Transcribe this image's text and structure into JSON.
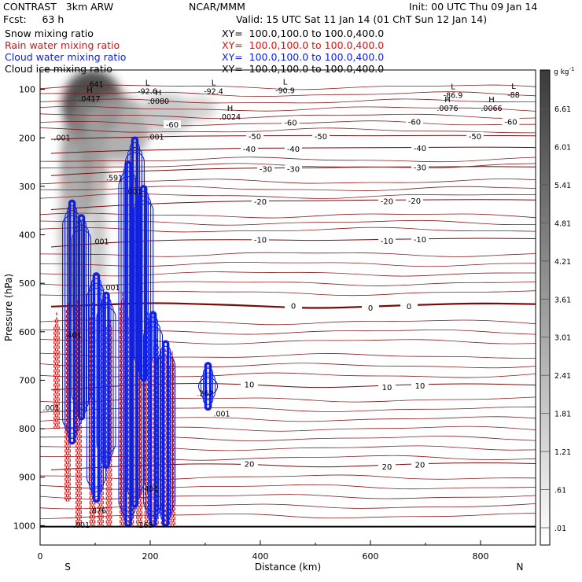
{
  "header": {
    "model": "CONTRAST   3km ARW",
    "center": "NCAR/MMM",
    "init": "Init: 00 UTC Thu 09 Jan 14",
    "fcst": "Fcst:     63 h",
    "valid": "Valid: 15 UTC Sat 11 Jan 14 (01 ChT Sun 12 Jan 14)",
    "fields": [
      {
        "label": "Snow mixing ratio",
        "xy": "XY=  100.0,100.0 to 100.0,400.0",
        "color": "#000000"
      },
      {
        "label": "Rain water mixing ratio",
        "xy": "XY=  100.0,100.0 to 100.0,400.0",
        "color": "#e01010"
      },
      {
        "label": "Cloud water mixing ratio",
        "xy": "XY=  100.0,100.0 to 100.0,400.0",
        "color": "#1020e0"
      },
      {
        "label": "Cloud ice mixing ratio",
        "xy": "XY=  100.0,100.0 to 100.0,400.0",
        "color": "#000000"
      }
    ]
  },
  "chart_data": {
    "type": "heatmap",
    "xlabel": "Distance (km)",
    "ylabel": "Pressure (hPa)",
    "xlim": [
      0,
      900
    ],
    "ylim": [
      1040,
      60
    ],
    "x_ticks": [
      0,
      200,
      400,
      600,
      800
    ],
    "y_ticks": [
      100,
      200,
      300,
      400,
      500,
      600,
      700,
      800,
      900,
      1000
    ],
    "x_end_labels": {
      "left": "S",
      "right": "N"
    },
    "colorbar": {
      "unit": "g kg",
      "unit_exp": "-1",
      "labels": [
        "6.61",
        "6.01",
        "5.41",
        "4.81",
        "4.21",
        "3.61",
        "3.01",
        "2.41",
        "1.81",
        "1.21",
        ".61",
        ".01"
      ]
    },
    "temperature_contours": [
      {
        "label": "-50",
        "points": [
          [
            20,
            203
          ],
          [
            100,
            200
          ],
          [
            200,
            198
          ],
          [
            300,
            196
          ],
          [
            400,
            196
          ],
          [
            500,
            195
          ],
          [
            600,
            196
          ],
          [
            700,
            195
          ],
          [
            800,
            195
          ],
          [
            900,
            196
          ]
        ]
      },
      {
        "label": "-40",
        "points": [
          [
            20,
            232
          ],
          [
            100,
            228
          ],
          [
            200,
            225
          ],
          [
            300,
            223
          ],
          [
            400,
            221
          ],
          [
            500,
            221
          ],
          [
            600,
            220
          ],
          [
            700,
            220
          ],
          [
            800,
            219
          ],
          [
            900,
            220
          ]
        ]
      },
      {
        "label": "-30",
        "points": [
          [
            20,
            278
          ],
          [
            100,
            272
          ],
          [
            200,
            268
          ],
          [
            300,
            264
          ],
          [
            400,
            262
          ],
          [
            500,
            262
          ],
          [
            600,
            260
          ],
          [
            700,
            260
          ],
          [
            800,
            259
          ],
          [
            900,
            260
          ]
        ]
      },
      {
        "label": "-20",
        "points": [
          [
            20,
            348
          ],
          [
            100,
            342
          ],
          [
            200,
            336
          ],
          [
            300,
            332
          ],
          [
            400,
            330
          ],
          [
            500,
            330
          ],
          [
            600,
            328
          ],
          [
            700,
            328
          ],
          [
            800,
            327
          ],
          [
            900,
            328
          ]
        ]
      },
      {
        "label": "-10",
        "points": [
          [
            20,
            425
          ],
          [
            100,
            418
          ],
          [
            200,
            412
          ],
          [
            300,
            410
          ],
          [
            400,
            410
          ],
          [
            500,
            412
          ],
          [
            600,
            410
          ],
          [
            700,
            408
          ],
          [
            800,
            407
          ],
          [
            900,
            408
          ]
        ]
      },
      {
        "label": "0",
        "points": [
          [
            20,
            548
          ],
          [
            100,
            545
          ],
          [
            200,
            540
          ],
          [
            300,
            543
          ],
          [
            400,
            547
          ],
          [
            500,
            552
          ],
          [
            600,
            548
          ],
          [
            700,
            544
          ],
          [
            800,
            541
          ],
          [
            900,
            543
          ]
        ]
      },
      {
        "label": "10",
        "points": [
          [
            20,
            720
          ],
          [
            100,
            715
          ],
          [
            200,
            708
          ],
          [
            300,
            706
          ],
          [
            400,
            710
          ],
          [
            500,
            716
          ],
          [
            600,
            712
          ],
          [
            700,
            708
          ],
          [
            800,
            707
          ],
          [
            900,
            710
          ]
        ]
      },
      {
        "label": "20",
        "points": [
          [
            20,
            885
          ],
          [
            100,
            880
          ],
          [
            200,
            875
          ],
          [
            300,
            872
          ],
          [
            400,
            874
          ],
          [
            500,
            880
          ],
          [
            600,
            876
          ],
          [
            700,
            872
          ],
          [
            800,
            870
          ],
          [
            900,
            872
          ]
        ]
      }
    ],
    "temperature_labels": [
      {
        "text": "-60",
        "x": 240,
        "p": 172
      },
      {
        "text": "-60",
        "x": 455,
        "p": 168
      },
      {
        "text": "-60",
        "x": 680,
        "p": 166
      },
      {
        "text": "-60",
        "x": 855,
        "p": 166
      },
      {
        "text": "-50",
        "x": 390,
        "p": 196
      },
      {
        "text": "-50",
        "x": 510,
        "p": 196
      },
      {
        "text": "-50",
        "x": 790,
        "p": 196
      },
      {
        "text": "-40",
        "x": 380,
        "p": 222
      },
      {
        "text": "-40",
        "x": 460,
        "p": 222
      },
      {
        "text": "-40",
        "x": 690,
        "p": 221
      },
      {
        "text": "-30",
        "x": 410,
        "p": 264
      },
      {
        "text": "-30",
        "x": 460,
        "p": 264
      },
      {
        "text": "-30",
        "x": 690,
        "p": 260
      },
      {
        "text": "-20",
        "x": 400,
        "p": 331
      },
      {
        "text": "-20",
        "x": 630,
        "p": 330
      },
      {
        "text": "-20",
        "x": 680,
        "p": 329
      },
      {
        "text": "-10",
        "x": 400,
        "p": 410
      },
      {
        "text": "-10",
        "x": 630,
        "p": 412
      },
      {
        "text": "-10",
        "x": 690,
        "p": 409
      },
      {
        "text": "0",
        "x": 460,
        "p": 546
      },
      {
        "text": "0",
        "x": 600,
        "p": 550
      },
      {
        "text": "0",
        "x": 670,
        "p": 547
      },
      {
        "text": "10",
        "x": 380,
        "p": 708
      },
      {
        "text": "10",
        "x": 630,
        "p": 714
      },
      {
        "text": "10",
        "x": 690,
        "p": 711
      },
      {
        "text": "20",
        "x": 380,
        "p": 872
      },
      {
        "text": "20",
        "x": 630,
        "p": 878
      },
      {
        "text": "20",
        "x": 690,
        "p": 874
      }
    ],
    "extrema_labels": [
      {
        "mark": "L",
        "value": "-92.6",
        "x": 195,
        "p": 95
      },
      {
        "mark": "L",
        "value": "-92.4",
        "x": 315,
        "p": 95
      },
      {
        "mark": "L",
        "value": "-90.9",
        "x": 445,
        "p": 93
      },
      {
        "mark": "L",
        "value": "-86.9",
        "x": 750,
        "p": 103
      },
      {
        "mark": "L",
        "value": "-88",
        "x": 860,
        "p": 102
      },
      {
        "mark": "H",
        "value": ".0417",
        "x": 90,
        "p": 110
      },
      {
        "mark": "H",
        "value": ".0080",
        "x": 215,
        "p": 115
      },
      {
        "mark": "H",
        "value": ".0024",
        "x": 345,
        "p": 148
      },
      {
        "mark": "H",
        "value": ".0076",
        "x": 740,
        "p": 130
      },
      {
        "mark": "H",
        "value": ".0066",
        "x": 820,
        "p": 130
      },
      {
        "mark": "",
        "value": ".641",
        "x": 100,
        "p": 80
      },
      {
        "mark": "",
        "value": ".001",
        "x": 210,
        "p": 189
      },
      {
        "mark": "",
        "value": ".001",
        "x": 40,
        "p": 191
      },
      {
        "mark": "",
        "value": ".591",
        "x": 135,
        "p": 273
      },
      {
        "mark": "",
        "value": ".001",
        "x": 170,
        "p": 302
      },
      {
        "mark": "",
        "value": ".001",
        "x": 110,
        "p": 405
      },
      {
        "mark": "",
        "value": ".001",
        "x": 130,
        "p": 500
      },
      {
        "mark": "",
        "value": ".401",
        "x": 60,
        "p": 598
      },
      {
        "mark": "",
        "value": ".001",
        "x": 20,
        "p": 748
      },
      {
        "mark": "",
        "value": ".001",
        "x": 75,
        "p": 990
      },
      {
        "mark": "",
        "value": ".876",
        "x": 105,
        "p": 960
      },
      {
        "mark": "",
        "value": ".401",
        "x": 200,
        "p": 915
      },
      {
        "mark": "",
        "value": ".263",
        "x": 190,
        "p": 990
      },
      {
        "mark": "",
        "value": ".262",
        "x": 300,
        "p": 718
      },
      {
        "mark": "",
        "value": ".001",
        "x": 330,
        "p": 760
      }
    ],
    "snow_shading": [
      {
        "x": 95,
        "p": 130,
        "wx": 55,
        "wp": 70,
        "level": 6.6
      },
      {
        "x": 80,
        "p": 240,
        "wx": 40,
        "wp": 120,
        "level": 3.5
      },
      {
        "x": 140,
        "p": 180,
        "wx": 60,
        "wp": 70,
        "level": 2.5
      },
      {
        "x": 230,
        "p": 150,
        "wx": 50,
        "wp": 40,
        "level": 1.5
      },
      {
        "x": 290,
        "p": 140,
        "wx": 30,
        "wp": 25,
        "level": 1.0
      },
      {
        "x": 60,
        "p": 390,
        "wx": 25,
        "wp": 180,
        "level": 2.0
      },
      {
        "x": 170,
        "p": 420,
        "wx": 20,
        "wp": 180,
        "level": 2.2
      },
      {
        "x": 105,
        "p": 400,
        "wx": 15,
        "wp": 160,
        "level": 1.5
      }
    ],
    "cloud_water_columns": [
      {
        "x": 58,
        "p_top": 330,
        "p_bot": 830
      },
      {
        "x": 75,
        "p_top": 360,
        "p_bot": 780
      },
      {
        "x": 102,
        "p_top": 480,
        "p_bot": 950
      },
      {
        "x": 120,
        "p_top": 520,
        "p_bot": 880
      },
      {
        "x": 160,
        "p_top": 250,
        "p_bot": 1000
      },
      {
        "x": 172,
        "p_top": 200,
        "p_bot": 960
      },
      {
        "x": 188,
        "p_top": 300,
        "p_bot": 700
      },
      {
        "x": 205,
        "p_top": 560,
        "p_bot": 1000
      },
      {
        "x": 228,
        "p_top": 620,
        "p_bot": 1000
      },
      {
        "x": 305,
        "p_top": 665,
        "p_bot": 760
      }
    ],
    "rain_columns": [
      {
        "x": 30,
        "p_top": 560,
        "p_bot": 800
      },
      {
        "x": 50,
        "p_top": 540,
        "p_bot": 950
      },
      {
        "x": 70,
        "p_top": 520,
        "p_bot": 1000
      },
      {
        "x": 95,
        "p_top": 540,
        "p_bot": 1000
      },
      {
        "x": 110,
        "p_top": 520,
        "p_bot": 1000
      },
      {
        "x": 125,
        "p_top": 560,
        "p_bot": 1000
      },
      {
        "x": 150,
        "p_top": 520,
        "p_bot": 1000
      },
      {
        "x": 165,
        "p_top": 540,
        "p_bot": 1000
      },
      {
        "x": 180,
        "p_top": 560,
        "p_bot": 1000
      },
      {
        "x": 195,
        "p_top": 560,
        "p_bot": 1000
      },
      {
        "x": 210,
        "p_top": 600,
        "p_bot": 1000
      },
      {
        "x": 225,
        "p_top": 620,
        "p_bot": 1000
      },
      {
        "x": 240,
        "p_top": 640,
        "p_bot": 1000
      }
    ],
    "surface_p": 1002
  }
}
